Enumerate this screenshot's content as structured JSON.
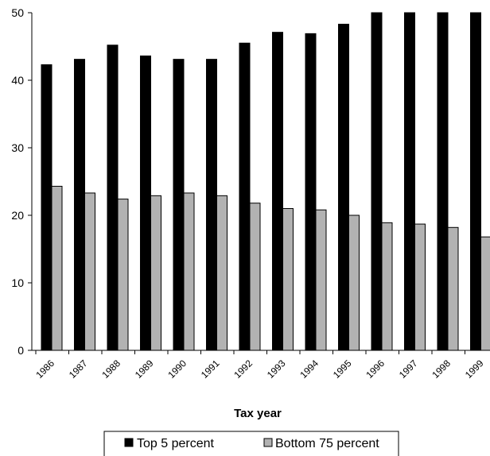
{
  "chart_data": {
    "type": "bar",
    "title": "",
    "xlabel": "Tax year",
    "ylabel": "",
    "categories": [
      "1986",
      "1987",
      "1988",
      "1989",
      "1990",
      "1991",
      "1992",
      "1993",
      "1994",
      "1995",
      "1996",
      "1997",
      "1998",
      "1999"
    ],
    "series": [
      {
        "name": "Top 5 percent",
        "color": "#000000",
        "values": [
          42.3,
          43.1,
          45.2,
          43.6,
          43.1,
          43.1,
          45.5,
          47.1,
          46.9,
          48.3,
          50.3,
          50.6,
          50.6,
          50.6
        ]
      },
      {
        "name": "Bottom 75 percent",
        "color": "#b2b2b2",
        "values": [
          24.3,
          23.3,
          22.4,
          22.9,
          23.3,
          22.9,
          21.8,
          21.0,
          20.8,
          20.0,
          18.9,
          18.7,
          18.2,
          16.8
        ]
      }
    ],
    "ylim": [
      0,
      50
    ],
    "yticks": [
      0,
      10,
      20,
      30,
      40,
      50
    ],
    "grid": false,
    "legend_position": "bottom"
  }
}
